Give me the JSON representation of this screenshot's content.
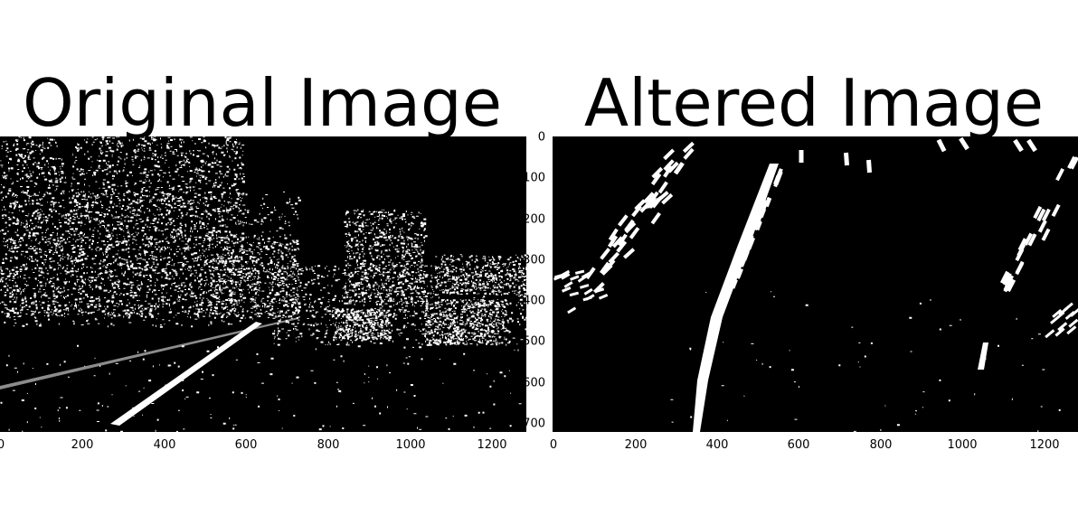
{
  "left_panel": {
    "title": "Original Image",
    "x_ticks": [
      "0",
      "200",
      "400",
      "600",
      "800",
      "1000",
      "1200"
    ]
  },
  "right_panel": {
    "title": "Altered Image",
    "x_ticks": [
      "0",
      "200",
      "400",
      "600",
      "800",
      "1000",
      "1200"
    ],
    "y_ticks": [
      "0",
      "100",
      "200",
      "300",
      "400",
      "500",
      "600",
      "700"
    ]
  },
  "colors": {
    "background": "#ffffff",
    "image_bg": "#000000",
    "pixels": "#ffffff"
  }
}
